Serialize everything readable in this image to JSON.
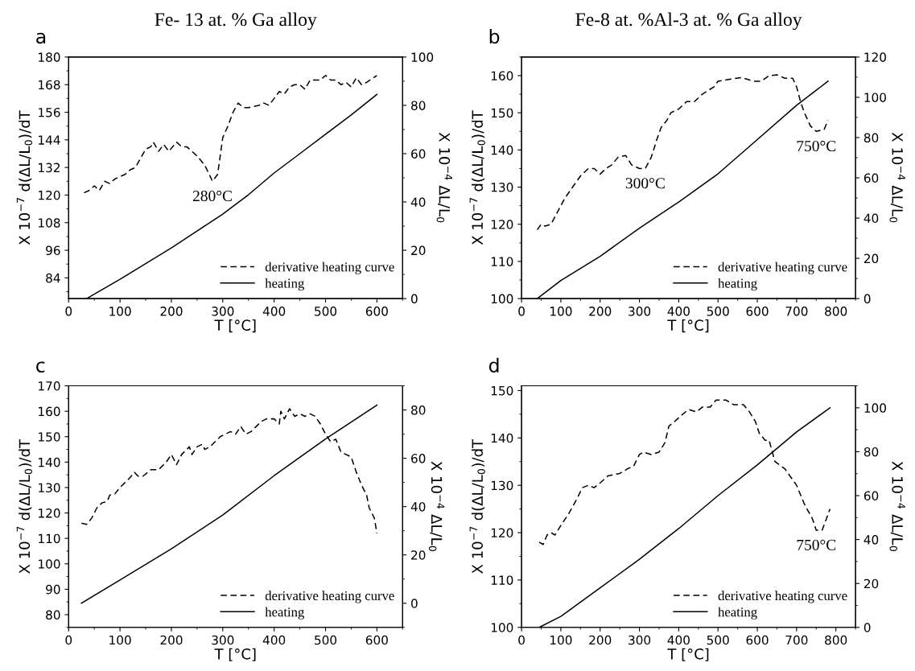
{
  "chart_data": [
    {
      "type": "line",
      "title": "Fe- 13 at. % Ga alloy",
      "xlabel": "T [°C]",
      "ylabel": "X 10$^{−7}$ d(ΔL/L$_{0}$)/dT",
      "y2label": "X 10$^{−4}$ ΔL/L$_{0}$",
      "annotations": [
        "a",
        {
          "text": "280°C",
          "x": 280,
          "y": 126
        }
      ],
      "xlim": [
        0,
        650
      ],
      "xticks": [
        0,
        100,
        200,
        300,
        400,
        500,
        600
      ],
      "ylim": [
        75,
        180
      ],
      "yticks": [
        84,
        96,
        108,
        120,
        132,
        144,
        156,
        168,
        180
      ],
      "y2lim": [
        0,
        100
      ],
      "y2ticks": [
        0,
        20,
        40,
        60,
        80,
        100
      ],
      "legend": "bottom right",
      "grid": false,
      "series": [
        {
          "name": "derivative heating curve",
          "color": "#000000",
          "line_style": "dashed",
          "x": [
            30,
            40,
            50,
            60,
            70,
            80,
            90,
            100,
            110,
            120,
            130,
            140,
            150,
            160,
            165,
            175,
            185,
            195,
            210,
            220,
            230,
            250,
            265,
            280,
            290,
            300,
            310,
            320,
            330,
            340,
            350,
            370,
            380,
            390,
            400,
            410,
            420,
            430,
            440,
            450,
            460,
            470,
            480,
            490,
            500,
            510,
            520,
            530,
            540,
            550,
            560,
            570,
            580,
            600
          ],
          "values": [
            121,
            122,
            124,
            122,
            126,
            125,
            127,
            128,
            129,
            131,
            132,
            136,
            140,
            141,
            143,
            139,
            142,
            139,
            143,
            141,
            141,
            137,
            133,
            126,
            129,
            145,
            150,
            156,
            160,
            158,
            158,
            159,
            160,
            159,
            162,
            165,
            164,
            167,
            168,
            168,
            166,
            170,
            170,
            170,
            172,
            170,
            170,
            168,
            169,
            167,
            171,
            168,
            169,
            172
          ]
        },
        {
          "name": "heating",
          "color": "#000000",
          "line_style": "solid",
          "axis": "y2",
          "x": [
            35,
            100,
            150,
            200,
            250,
            300,
            350,
            400,
            450,
            500,
            550,
            600
          ],
          "values": [
            0,
            8,
            14.5,
            21,
            28,
            35,
            43,
            52,
            60,
            68,
            76,
            84.5
          ]
        }
      ]
    },
    {
      "type": "line",
      "title": "Fe-8 at. %Al-3 at. % Ga alloy",
      "xlabel": "T [°C]",
      "ylabel": "X 10$^{−7}$ d(ΔL/L$_{0}$)/dT",
      "y2label": "X 10$^{−4}$ ΔL/L$_{0}$",
      "annotations": [
        "b",
        {
          "text": "300°C",
          "x": 315,
          "y": 135
        },
        {
          "text": "750°C",
          "x": 750,
          "y": 145
        }
      ],
      "xlim": [
        0,
        850
      ],
      "xticks": [
        0,
        100,
        200,
        300,
        400,
        500,
        600,
        700,
        800
      ],
      "ylim": [
        100,
        165
      ],
      "yticks": [
        100,
        110,
        120,
        130,
        140,
        150,
        160
      ],
      "y2lim": [
        0,
        120
      ],
      "y2ticks": [
        0,
        20,
        40,
        60,
        80,
        100,
        120
      ],
      "legend": "bottom right",
      "grid": false,
      "series": [
        {
          "name": "derivative heating curve",
          "color": "#000000",
          "line_style": "dashed",
          "x": [
            40,
            50,
            60,
            75,
            90,
            110,
            130,
            150,
            170,
            185,
            200,
            215,
            230,
            245,
            265,
            280,
            300,
            315,
            330,
            345,
            355,
            370,
            380,
            400,
            420,
            440,
            460,
            490,
            500,
            530,
            560,
            590,
            610,
            630,
            650,
            670,
            690,
            700,
            710,
            720,
            735,
            750,
            770,
            780
          ],
          "values": [
            118.5,
            120,
            119.5,
            120,
            123,
            127,
            130,
            133,
            135,
            135,
            133.5,
            135,
            136,
            138,
            138.5,
            136,
            135,
            135,
            138,
            143,
            146,
            148,
            150,
            151,
            153,
            153,
            155,
            157,
            158.5,
            159,
            159.5,
            158.5,
            158.5,
            160,
            160.2,
            159.3,
            159.3,
            157,
            153,
            150,
            146.5,
            145,
            145.5,
            148
          ]
        },
        {
          "name": "heating",
          "color": "#000000",
          "line_style": "solid",
          "axis": "y2",
          "x": [
            40,
            100,
            200,
            300,
            400,
            500,
            600,
            700,
            780
          ],
          "values": [
            0,
            9,
            21,
            35,
            48,
            62,
            79,
            96,
            108
          ]
        }
      ]
    },
    {
      "type": "line",
      "xlabel": "T [°C]",
      "ylabel": "X 10$^{−7}$ d(ΔL/L$_{0}$)/dT",
      "y2label": "X 10$^{−4}$ ΔL/L$_{0}$",
      "annotations": [
        "c"
      ],
      "xlim": [
        0,
        650
      ],
      "xticks": [
        0,
        100,
        200,
        300,
        400,
        500,
        600
      ],
      "ylim": [
        75,
        170
      ],
      "yticks": [
        80,
        90,
        100,
        110,
        120,
        130,
        140,
        150,
        160,
        170
      ],
      "y2lim": [
        -10,
        90
      ],
      "y2ticks": [
        0,
        20,
        40,
        60,
        80
      ],
      "legend": "bottom right",
      "grid": false,
      "series": [
        {
          "name": "derivative heating curve",
          "color": "#000000",
          "line_style": "dashed",
          "x": [
            25,
            35,
            45,
            55,
            65,
            75,
            80,
            90,
            100,
            110,
            120,
            128,
            135,
            145,
            160,
            175,
            190,
            200,
            210,
            220,
            230,
            235,
            240,
            250,
            260,
            265,
            275,
            285,
            295,
            305,
            315,
            325,
            335,
            345,
            355,
            365,
            375,
            385,
            400,
            410,
            413,
            420,
            430,
            440,
            450,
            460,
            470,
            480,
            490,
            500,
            510,
            520,
            530,
            550,
            560,
            570,
            580,
            585,
            595,
            600
          ],
          "values": [
            116,
            115.5,
            118,
            122,
            124,
            124.5,
            127,
            127.5,
            130,
            132,
            134,
            136,
            134.5,
            134.5,
            137,
            137,
            140,
            143,
            139,
            143,
            145,
            146,
            143,
            146,
            147,
            145,
            146,
            148,
            150,
            151,
            152,
            151,
            154,
            151,
            152,
            154,
            156,
            157,
            157,
            155,
            160,
            157,
            161,
            158,
            159,
            158,
            159,
            158,
            155,
            151,
            148,
            149,
            144,
            142,
            136,
            131,
            127,
            122,
            118,
            112
          ]
        },
        {
          "name": "heating",
          "color": "#000000",
          "line_style": "solid",
          "axis": "y2",
          "x": [
            25,
            100,
            200,
            300,
            400,
            500,
            600
          ],
          "values": [
            0,
            9.6,
            22.5,
            36.5,
            52.8,
            68,
            82
          ]
        }
      ]
    },
    {
      "type": "line",
      "xlabel": "T [°C]",
      "ylabel": "X 10$^{−7}$ d(ΔL/L$_{0}$)/dT",
      "y2label": "X 10$^{−4}$ ΔL/L$_{0}$",
      "annotations": [
        "d",
        {
          "text": "750°C",
          "x": 750,
          "y": 120.5
        }
      ],
      "xlim": [
        0,
        850
      ],
      "xticks": [
        0,
        100,
        200,
        300,
        400,
        500,
        600,
        700,
        800
      ],
      "ylim": [
        100,
        151
      ],
      "yticks": [
        100,
        110,
        120,
        130,
        140,
        150
      ],
      "y2lim": [
        0,
        110
      ],
      "y2ticks": [
        0,
        20,
        40,
        60,
        80,
        100
      ],
      "legend": "bottom right",
      "grid": false,
      "series": [
        {
          "name": "derivative heating curve",
          "color": "#000000",
          "line_style": "dashed",
          "x": [
            45,
            55,
            65,
            75,
            85,
            100,
            120,
            140,
            155,
            170,
            185,
            200,
            220,
            250,
            270,
            285,
            300,
            310,
            330,
            350,
            365,
            375,
            390,
            410,
            425,
            445,
            460,
            480,
            495,
            520,
            540,
            565,
            580,
            595,
            605,
            620,
            630,
            645,
            670,
            700,
            720,
            740,
            750,
            765,
            785
          ],
          "values": [
            118,
            117.5,
            119.5,
            120,
            119.5,
            121.5,
            124,
            127,
            129.5,
            130,
            129.5,
            130.5,
            132,
            132.5,
            133.5,
            134,
            136.5,
            137,
            136.5,
            137,
            139,
            142.5,
            143.5,
            145,
            146,
            145.5,
            146.5,
            146.5,
            148,
            148,
            147,
            147,
            145.5,
            143.5,
            141,
            139.5,
            139.5,
            135,
            133.5,
            130,
            126,
            123,
            120.5,
            120.5,
            125
          ]
        },
        {
          "name": "heating",
          "color": "#000000",
          "line_style": "solid",
          "axis": "y2",
          "x": [
            45,
            100,
            200,
            300,
            400,
            500,
            600,
            700,
            785
          ],
          "values": [
            0,
            5,
            18,
            31,
            45,
            60,
            74,
            89,
            100
          ]
        }
      ]
    }
  ]
}
